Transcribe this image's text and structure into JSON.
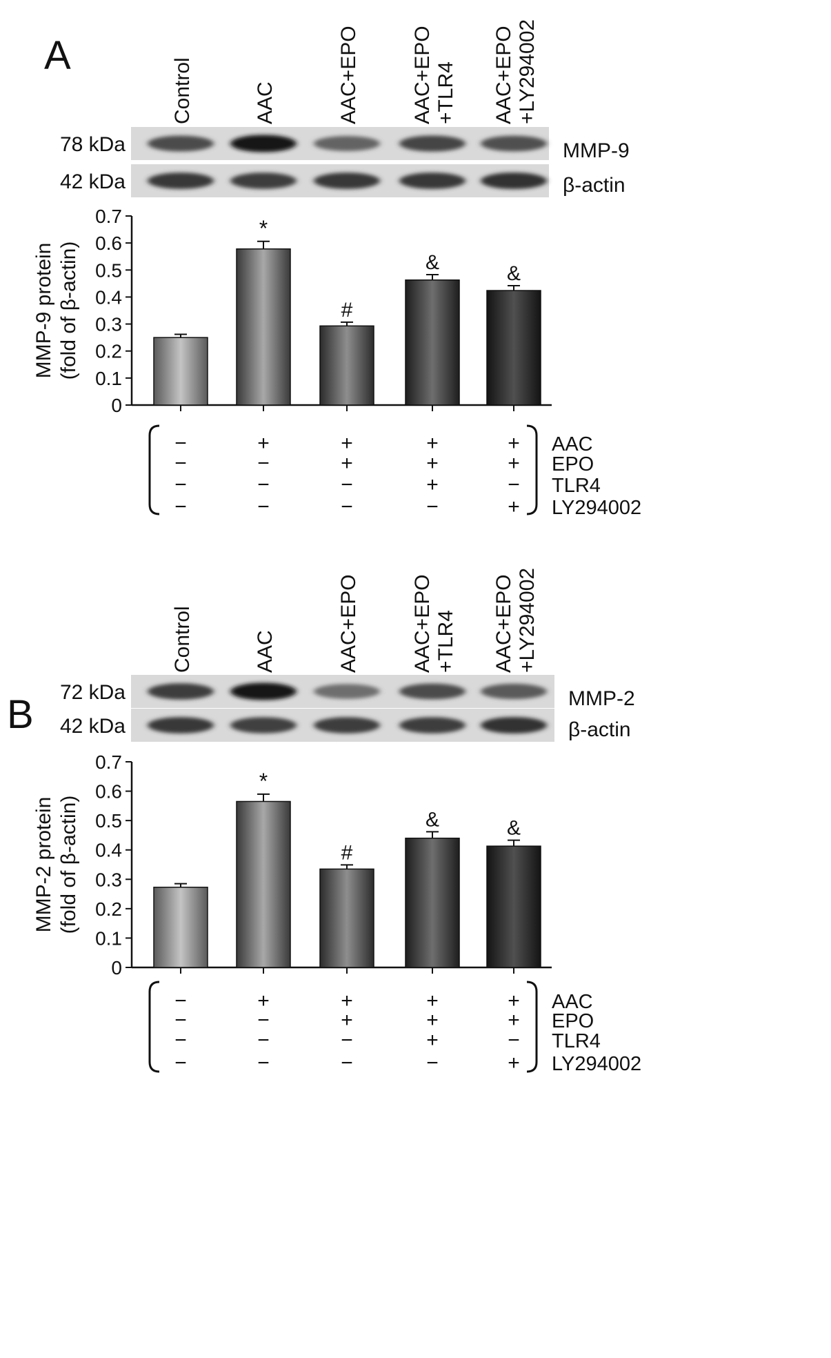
{
  "panels": [
    {
      "letter": "A",
      "lanes": [
        "Control",
        "AAC",
        "AAC+EPO",
        "AAC+EPO\n+TLR4",
        "AAC+EPO\n+LY294002"
      ],
      "blots": [
        {
          "kda": "78 kDa",
          "protein": "MMP-9",
          "intensity": [
            0.62,
            0.88,
            0.5,
            0.66,
            0.6
          ]
        },
        {
          "kda": "42 kDa",
          "protein": "β-actin",
          "intensity": [
            0.72,
            0.7,
            0.72,
            0.72,
            0.75
          ]
        }
      ],
      "chart_data": {
        "type": "bar",
        "categories": [
          "Control",
          "AAC",
          "AAC+EPO",
          "AAC+EPO+TLR4",
          "AAC+EPO+LY294002"
        ],
        "values": [
          0.25,
          0.578,
          0.293,
          0.463,
          0.424
        ],
        "errors": [
          0.012,
          0.028,
          0.014,
          0.02,
          0.018
        ],
        "annotations": [
          "",
          "*",
          "#",
          "&",
          "&"
        ],
        "ylabel": [
          "MMP-9 protein",
          "(fold of β-actin)"
        ],
        "ylim": [
          0,
          0.7
        ],
        "yticks": [
          "0",
          "0.1",
          "0.2",
          "0.3",
          "0.4",
          "0.5",
          "0.6",
          "0.7"
        ]
      },
      "treatments": {
        "rows": [
          "AAC",
          "EPO",
          "TLR4",
          "LY294002"
        ],
        "matrix": [
          [
            "−",
            "+",
            "+",
            "+",
            "+"
          ],
          [
            "−",
            "−",
            "+",
            "+",
            "+"
          ],
          [
            "−",
            "−",
            "−",
            "+",
            "−"
          ],
          [
            "−",
            "−",
            "−",
            "−",
            "+"
          ]
        ]
      }
    },
    {
      "letter": "B",
      "lanes": [
        "Control",
        "AAC",
        "AAC+EPO",
        "AAC+EPO\n+TLR4",
        "AAC+EPO\n+LY294002"
      ],
      "blots": [
        {
          "kda": "72 kDa",
          "protein": "MMP-2",
          "intensity": [
            0.7,
            0.88,
            0.45,
            0.62,
            0.55
          ]
        },
        {
          "kda": "42 kDa",
          "protein": "β-actin",
          "intensity": [
            0.72,
            0.68,
            0.7,
            0.7,
            0.75
          ]
        }
      ],
      "chart_data": {
        "type": "bar",
        "categories": [
          "Control",
          "AAC",
          "AAC+EPO",
          "AAC+EPO+TLR4",
          "AAC+EPO+LY294002"
        ],
        "values": [
          0.273,
          0.565,
          0.335,
          0.44,
          0.413
        ],
        "errors": [
          0.012,
          0.025,
          0.014,
          0.022,
          0.02
        ],
        "annotations": [
          "",
          "*",
          "#",
          "&",
          "&"
        ],
        "ylabel": [
          "MMP-2 protein",
          "(fold of β-actin)"
        ],
        "ylim": [
          0,
          0.7
        ],
        "yticks": [
          "0",
          "0.1",
          "0.2",
          "0.3",
          "0.4",
          "0.5",
          "0.6",
          "0.7"
        ]
      },
      "treatments": {
        "rows": [
          "AAC",
          "EPO",
          "TLR4",
          "LY294002"
        ],
        "matrix": [
          [
            "−",
            "+",
            "+",
            "+",
            "+"
          ],
          [
            "−",
            "−",
            "+",
            "+",
            "+"
          ],
          [
            "−",
            "−",
            "−",
            "+",
            "−"
          ],
          [
            "−",
            "−",
            "−",
            "−",
            "+"
          ]
        ]
      }
    }
  ]
}
